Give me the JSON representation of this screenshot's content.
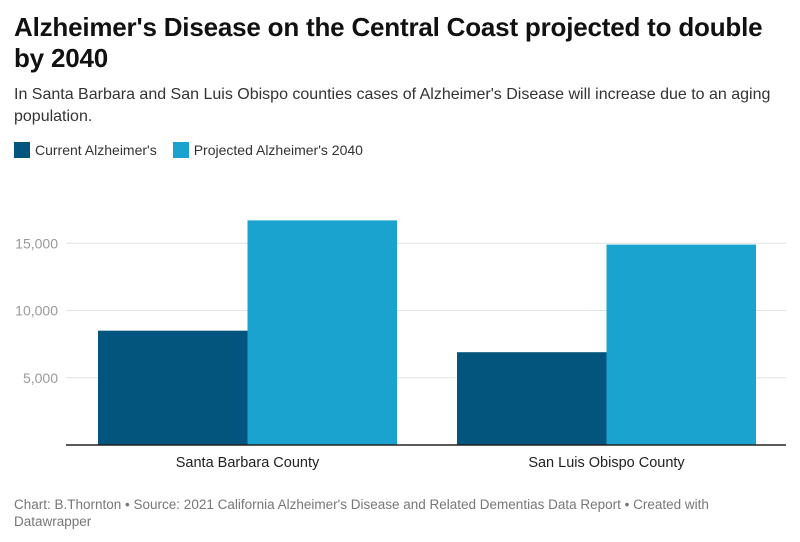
{
  "chart_data": {
    "type": "bar",
    "title": "Alzheimer's Disease on the Central Coast projected to double by 2040",
    "subtitle": "In Santa Barbara and San Luis Obispo counties cases of Alzheimer's Disease will increase due to an aging population.",
    "categories": [
      "Santa Barbara County",
      "San Luis Obispo County"
    ],
    "series": [
      {
        "name": "Current Alzheimer's",
        "color": "#03557e",
        "values": [
          8500,
          6900
        ]
      },
      {
        "name": "Projected Alzheimer's 2040",
        "color": "#1aa3cf",
        "values": [
          16700,
          14900
        ]
      }
    ],
    "y_ticks": [
      5000,
      10000,
      15000
    ],
    "y_tick_labels": [
      "5,000",
      "10,000",
      "15,000"
    ],
    "ylim": [
      0,
      18500
    ],
    "xlabel": "",
    "ylabel": "",
    "grid": true,
    "legend": "top-left"
  },
  "footer": {
    "text": "Chart: B.Thornton • Source: 2021 California Alzheimer's Disease and Related Dementias Data Report • Created with Datawrapper"
  }
}
